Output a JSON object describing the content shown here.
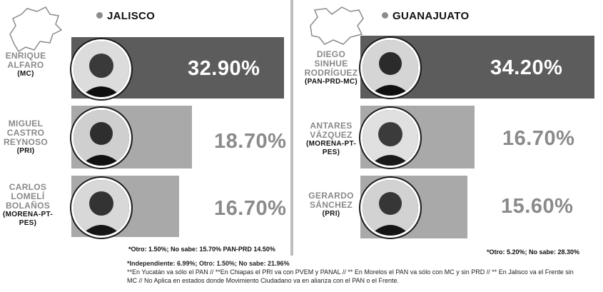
{
  "panels": {
    "left": {
      "state": "JALISCO",
      "candidates": [
        {
          "name_lines": [
            "ENRIQUE",
            "ALFARO"
          ],
          "party": "(MC)",
          "percent": "32.90%"
        },
        {
          "name_lines": [
            "MIGUEL",
            "CASTRO",
            "REYNOSO"
          ],
          "party": "(PRI)",
          "percent": "18.70%"
        },
        {
          "name_lines": [
            "CARLOS",
            "LOMELÍ",
            "BOLAÑOS"
          ],
          "party": "(MORENA-PT-PES)",
          "percent": "16.70%"
        }
      ],
      "note": "*Otro: 1.50%; No sabe: 15.70% PAN-PRD 14.50%"
    },
    "right": {
      "state": "GUANAJUATO",
      "candidates": [
        {
          "name_lines": [
            "DIEGO",
            "SINHUE",
            "RODRÍGUEZ"
          ],
          "party": "(PAN-PRD-MC)",
          "percent": "34.20%"
        },
        {
          "name_lines": [
            "ANTARES",
            "VÁZQUEZ"
          ],
          "party": "(MORENA-PT-PES)",
          "percent": "16.70%"
        },
        {
          "name_lines": [
            "GERARDO",
            "SÁNCHEZ"
          ],
          "party": "(PRI)",
          "percent": "15.60%"
        }
      ],
      "note": "*Otro: 5.20%; No sabe: 28.30%"
    }
  },
  "footer": {
    "line1": "*Independiente: 6.99%; Otro: 1.50%; No sabe: 21.96%",
    "line2": "**En Yucatán va sólo el PAN // **En Chiapas el PRI va con PVEM y PANAL // ** En Morelos el PAN va sólo con MC y sin PRD // ** En Jalisco va el Frente sin",
    "line3": "MC // No Aplica en estados donde Movimiento Ciudadano va en alianza con el PAN o el Frente."
  },
  "colors": {
    "leader_bar": "#5c5c5c",
    "other_bar": "#a9a9a9",
    "bullet": "#8c8c8c",
    "name_text": "#8a8a8a"
  },
  "icons": {
    "left_map": "jalisco-map-icon",
    "right_map": "guanajuato-map-icon"
  },
  "chart_data": [
    {
      "type": "bar",
      "title": "JALISCO",
      "categories": [
        "ENRIQUE ALFARO (MC)",
        "MIGUEL CASTRO REYNOSO (PRI)",
        "CARLOS LOMELÍ BOLAÑOS (MORENA-PT-PES)"
      ],
      "values": [
        32.9,
        18.7,
        16.7
      ],
      "orientation": "horizontal",
      "annotations": [
        "*Otro: 1.50%; No sabe: 15.70% PAN-PRD 14.50%"
      ]
    },
    {
      "type": "bar",
      "title": "GUANAJUATO",
      "categories": [
        "DIEGO SINHUE RODRÍGUEZ (PAN-PRD-MC)",
        "ANTARES VÁZQUEZ (MORENA-PT-PES)",
        "GERARDO SÁNCHEZ (PRI)"
      ],
      "values": [
        34.2,
        16.7,
        15.6
      ],
      "orientation": "horizontal",
      "annotations": [
        "*Otro: 5.20%; No sabe: 28.30%"
      ]
    }
  ]
}
